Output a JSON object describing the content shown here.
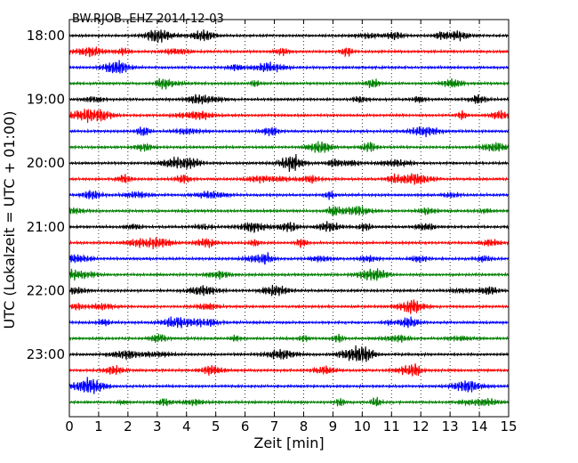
{
  "chart_data": {
    "type": "line",
    "title": "BW.RJOB..EHZ 2014-12-03",
    "xlabel": "Zeit  [min]",
    "ylabel": "UTC (Lokalzeit = UTC + 01:00)",
    "xlim": [
      0,
      15
    ],
    "x_ticks": [
      "0",
      "1",
      "2",
      "3",
      "4",
      "5",
      "6",
      "7",
      "8",
      "9",
      "10",
      "11",
      "12",
      "13",
      "14",
      "15"
    ],
    "y_ticks": [
      {
        "label": "18:00",
        "row": 0
      },
      {
        "label": "19:00",
        "row": 4
      },
      {
        "label": "20:00",
        "row": 8
      },
      {
        "label": "21:00",
        "row": 12
      },
      {
        "label": "22:00",
        "row": 16
      },
      {
        "label": "23:00",
        "row": 20
      }
    ],
    "row_minutes": 15,
    "row_count": 24,
    "grid": "vertical dotted lines at each minute",
    "color_cycle": [
      "#000000",
      "#ff0000",
      "#0000ff",
      "#008000"
    ]
  }
}
